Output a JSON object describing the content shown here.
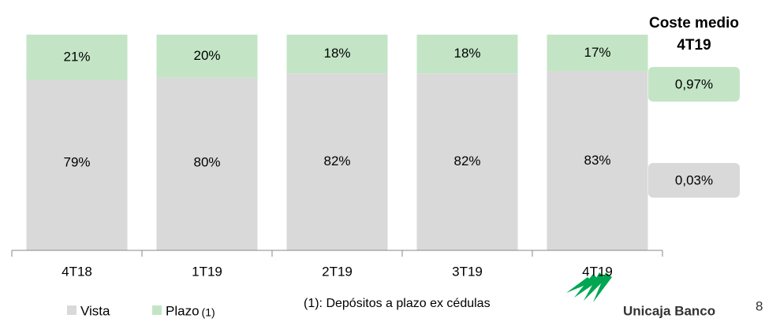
{
  "chart_data": {
    "type": "stacked_bar",
    "categories": [
      "4T18",
      "1T19",
      "2T19",
      "3T19",
      "4T19"
    ],
    "series": [
      {
        "name": "Vista",
        "color": "#d9d9d9",
        "values": [
          79,
          80,
          82,
          82,
          83
        ],
        "value_labels": [
          "79%",
          "80%",
          "82%",
          "82%",
          "83%"
        ]
      },
      {
        "name": "Plazo",
        "note": "(1)",
        "color": "#c3e5c6",
        "values": [
          21,
          20,
          18,
          18,
          17
        ],
        "value_labels": [
          "21%",
          "20%",
          "18%",
          "18%",
          "17%"
        ]
      }
    ],
    "ylim": [
      0,
      100
    ],
    "side_panel": {
      "title": [
        "Coste medio",
        "4T19"
      ],
      "values": [
        "0,97%",
        "0,03%"
      ]
    },
    "footnote": "(1): Depósitos a plazo ex cédulas",
    "logo": "Unicaja Banco",
    "page_number": "8"
  }
}
